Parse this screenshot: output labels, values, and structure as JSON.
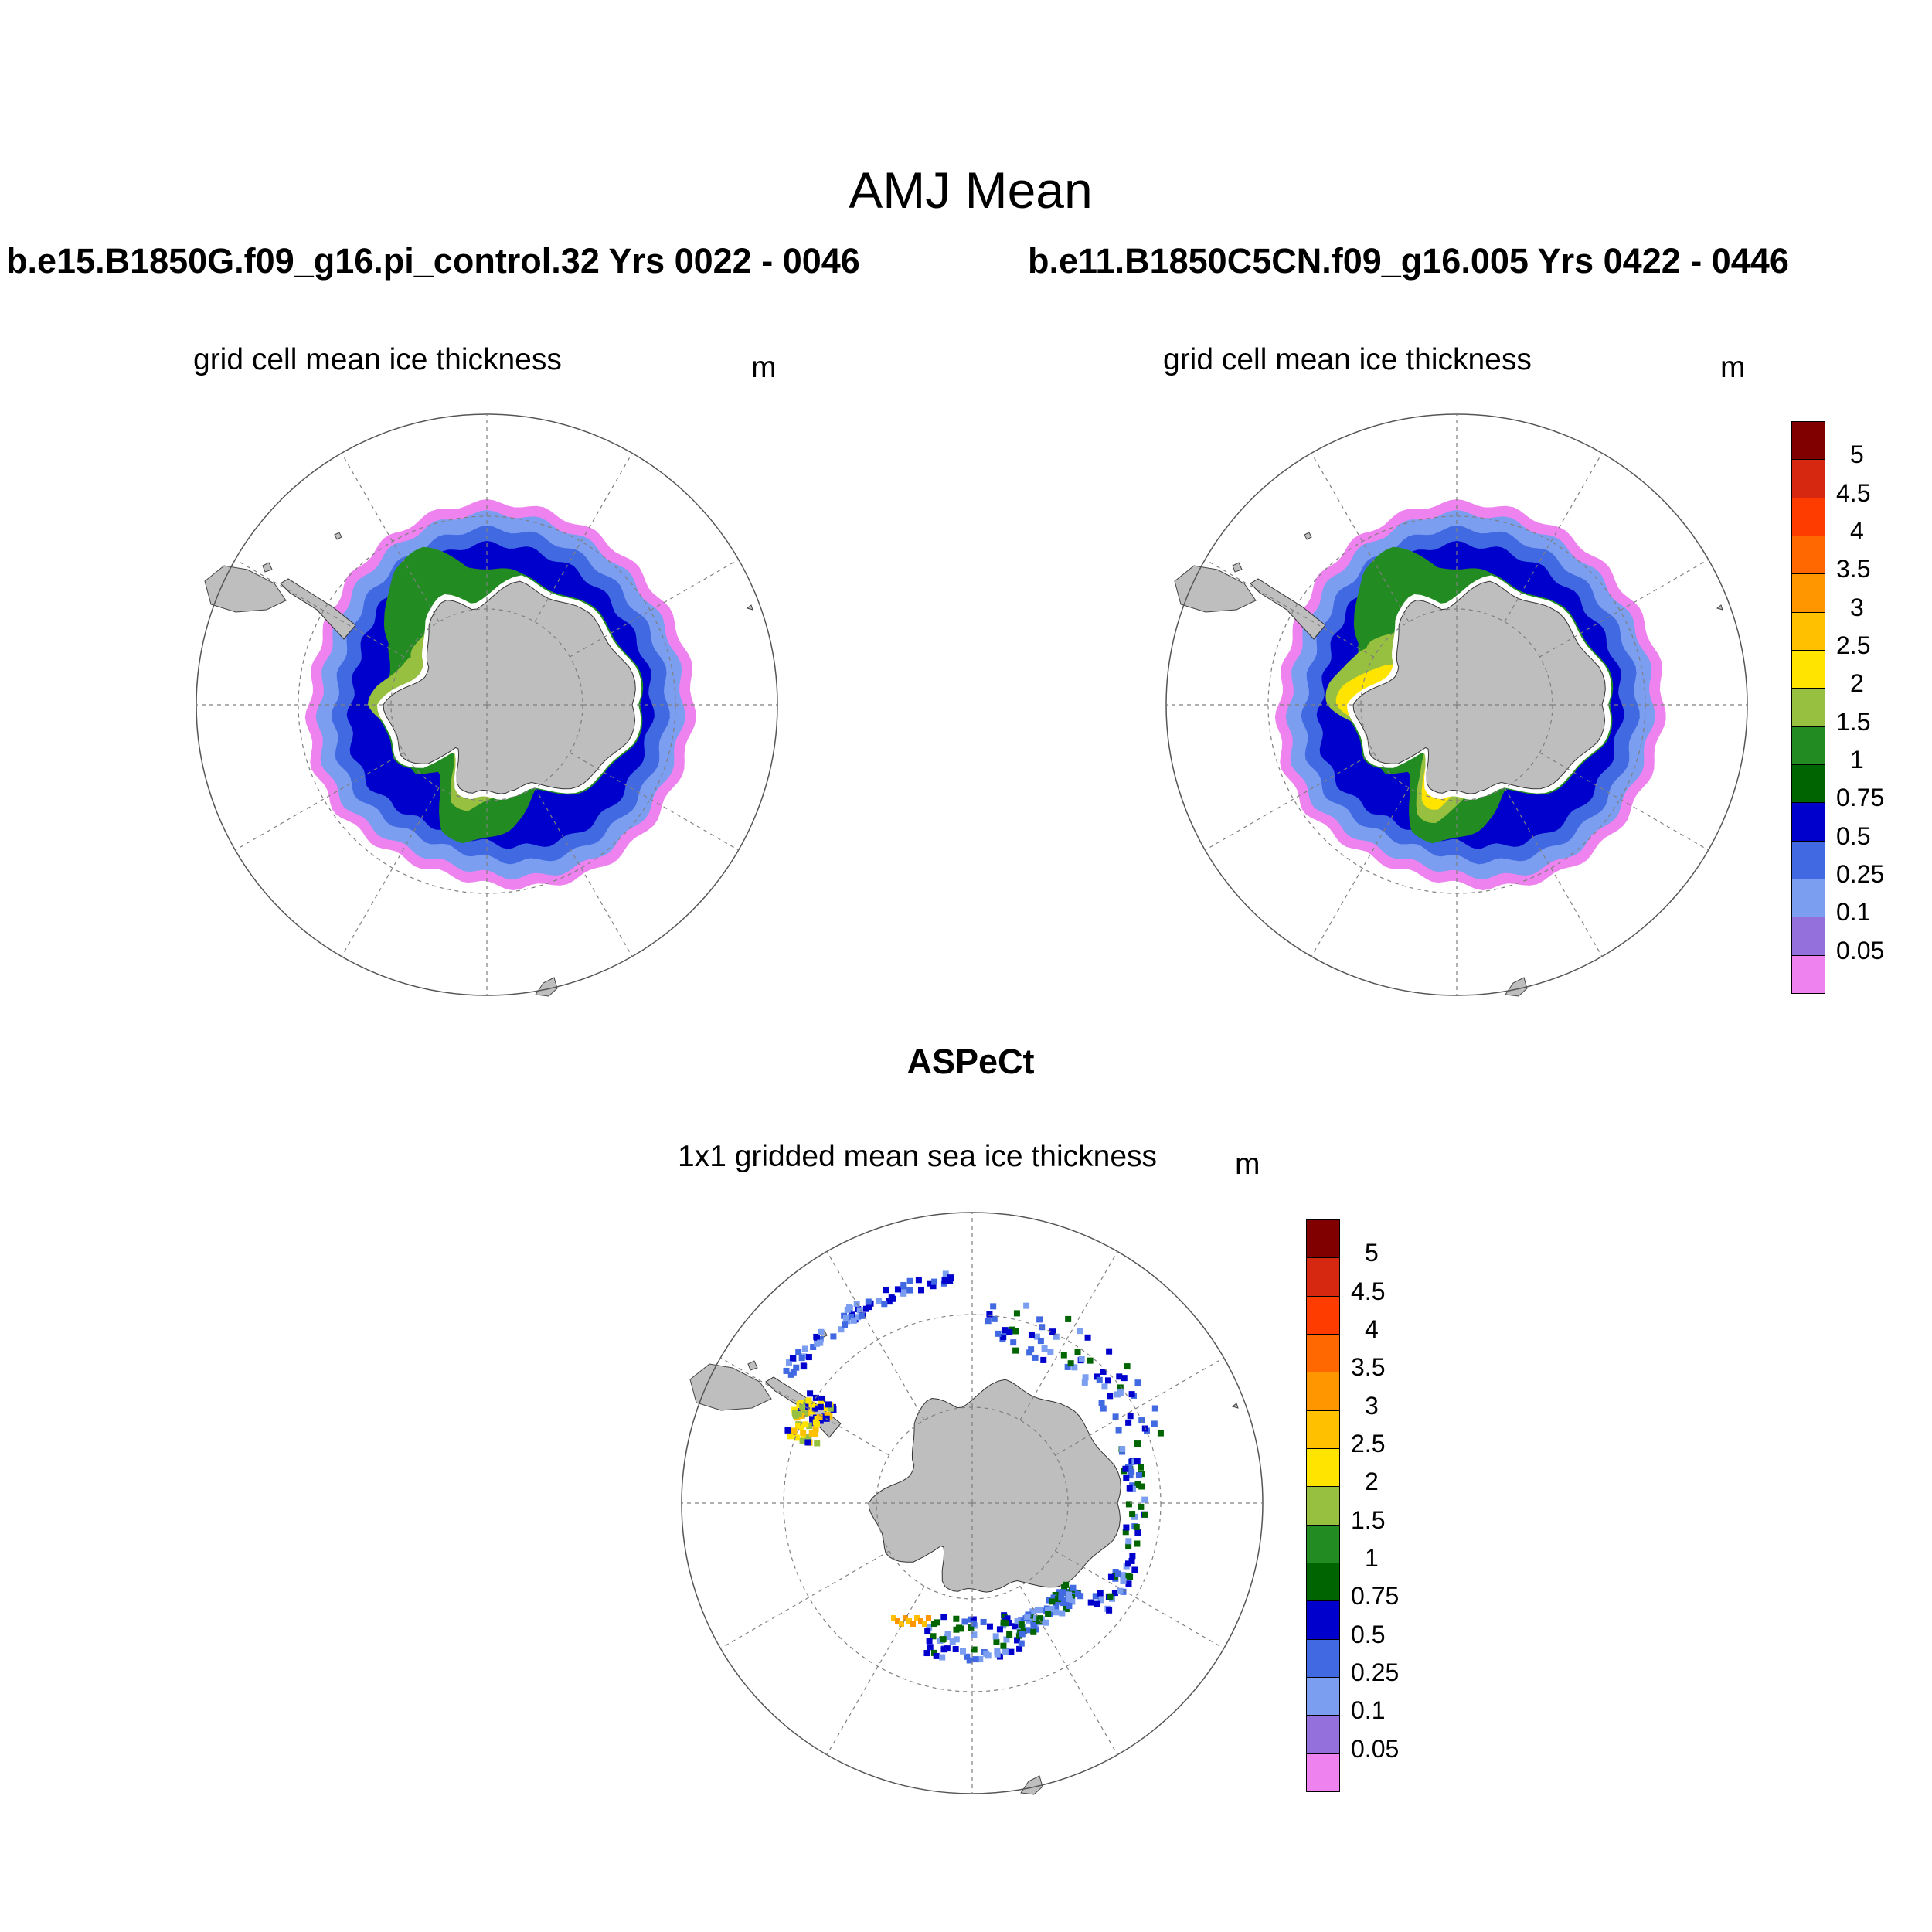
{
  "main_title": "AMJ Mean",
  "case_titles": {
    "left": "b.e15.B1850G.f09_g16.pi_control.32  Yrs 0022 - 0046",
    "right": "b.e11.B1850C5CN.f09_g16.005  Yrs 0422 - 0446"
  },
  "panels": [
    {
      "subtitle": "grid cell mean ice thickness",
      "unit": "m"
    },
    {
      "subtitle": "grid cell mean ice thickness",
      "unit": "m"
    },
    {
      "subtitle": "1x1 gridded mean sea ice thickness",
      "unit": "m"
    }
  ],
  "obs_title": "ASPeCt",
  "colorbar": {
    "labels": [
      "5",
      "4.5",
      "4",
      "3.5",
      "3",
      "2.5",
      "2",
      "1.5",
      "1",
      "0.75",
      "0.5",
      "0.25",
      "0.1",
      "0.05"
    ],
    "colors": [
      "#800000",
      "#d62810",
      "#ff3c00",
      "#ff6800",
      "#ff9600",
      "#ffc000",
      "#ffe400",
      "#98c040",
      "#228b22",
      "#006400",
      "#0000cd",
      "#4169e1",
      "#7b9ef0",
      "#9370db",
      "#ee82ee"
    ]
  },
  "map_colors": {
    "land": "#bebebe",
    "ocean": "#ffffff",
    "grid": "#7f7f7f"
  }
}
